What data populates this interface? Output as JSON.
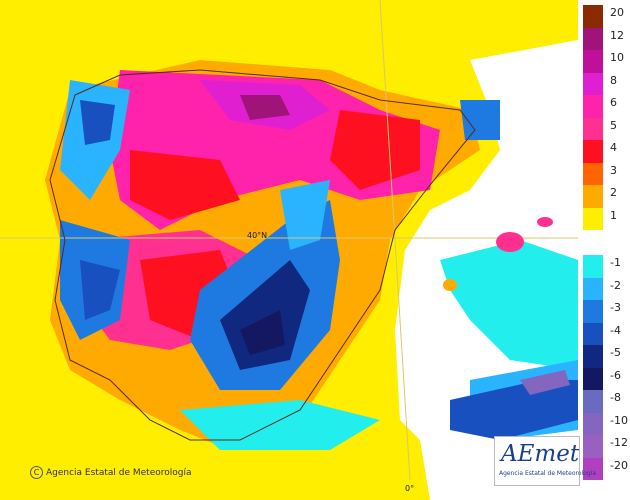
{
  "legend": {
    "labels": [
      "20",
      "12",
      "10",
      "8",
      "6",
      "5",
      "4",
      "3",
      "2",
      "1",
      "-1",
      "-2",
      "-3",
      "-4",
      "-5",
      "-6",
      "-8",
      "-10",
      "-12",
      "-20"
    ],
    "warm_colors": [
      "#8b2a00",
      "#a0147a",
      "#c0109a",
      "#e020d0",
      "#ff22aa",
      "#ff3090",
      "#ff1020",
      "#ff6400",
      "#ffaa00",
      "#ffee00"
    ],
    "cold_colors": [
      "#22eeee",
      "#2ab4ff",
      "#1e7ae0",
      "#1850c0",
      "#102880",
      "#141860",
      "#6a6ac0",
      "#8266c0",
      "#9a60c0",
      "#b040c0"
    ]
  },
  "map_labels": {
    "lat": "40°N",
    "lon": "0°"
  },
  "credit": "Agencia Estatal de Meteorología",
  "logo": {
    "word": "AEmet",
    "sub": "Agencia Estatal de Meteorología"
  },
  "colors": {
    "ocean": "#ffee00",
    "white": "#ffffff"
  }
}
